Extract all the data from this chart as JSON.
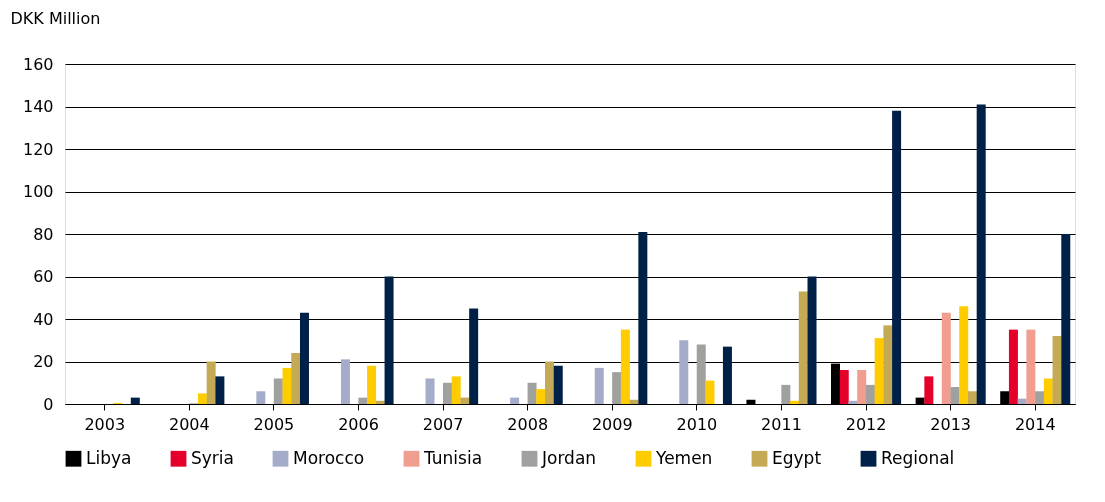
{
  "chart_data": {
    "type": "bar",
    "ylabel": "DKK Million",
    "categories": [
      "2003",
      "2004",
      "2005",
      "2006",
      "2007",
      "2008",
      "2009",
      "2010",
      "2011",
      "2012",
      "2013",
      "2014"
    ],
    "series": [
      {
        "name": "Libya",
        "color": "#000000",
        "values": [
          0,
          0,
          0,
          0,
          0,
          0,
          0,
          0,
          2,
          19,
          3,
          6
        ]
      },
      {
        "name": "Syria",
        "color": "#e4002b",
        "values": [
          0,
          0,
          0,
          0,
          0,
          0,
          0,
          0,
          0,
          16,
          13,
          35
        ]
      },
      {
        "name": "Morocco",
        "color": "#a5acc9",
        "values": [
          0,
          null,
          6,
          21,
          12,
          3,
          17,
          30,
          null,
          1.5,
          null,
          2.5
        ]
      },
      {
        "name": "Tunisia",
        "color": "#f19d8f",
        "values": [
          0,
          0,
          0,
          0,
          0,
          0,
          0,
          0,
          0,
          16,
          43,
          35
        ]
      },
      {
        "name": "Jordan",
        "color": "#a0a09f",
        "values": [
          0,
          0.3,
          12,
          3,
          10,
          10,
          15,
          28,
          9,
          9,
          8,
          6
        ]
      },
      {
        "name": "Yemen",
        "color": "#ffcc00",
        "values": [
          0.5,
          5,
          17,
          18,
          13,
          7,
          35,
          11,
          1.5,
          31,
          46,
          12
        ]
      },
      {
        "name": "Egypt",
        "color": "#c4aa55",
        "values": [
          0,
          20,
          24,
          1.5,
          3,
          20,
          2,
          0,
          53,
          37,
          6,
          32
        ]
      },
      {
        "name": "Regional",
        "color": "#002147",
        "values": [
          3,
          13,
          43,
          60,
          45,
          18,
          81,
          27,
          60,
          138,
          141,
          80
        ]
      }
    ],
    "ylim": [
      0,
      160
    ],
    "yticks": [
      0,
      20,
      40,
      60,
      80,
      100,
      120,
      140,
      160
    ],
    "grid": "y",
    "legend": "bottom"
  }
}
